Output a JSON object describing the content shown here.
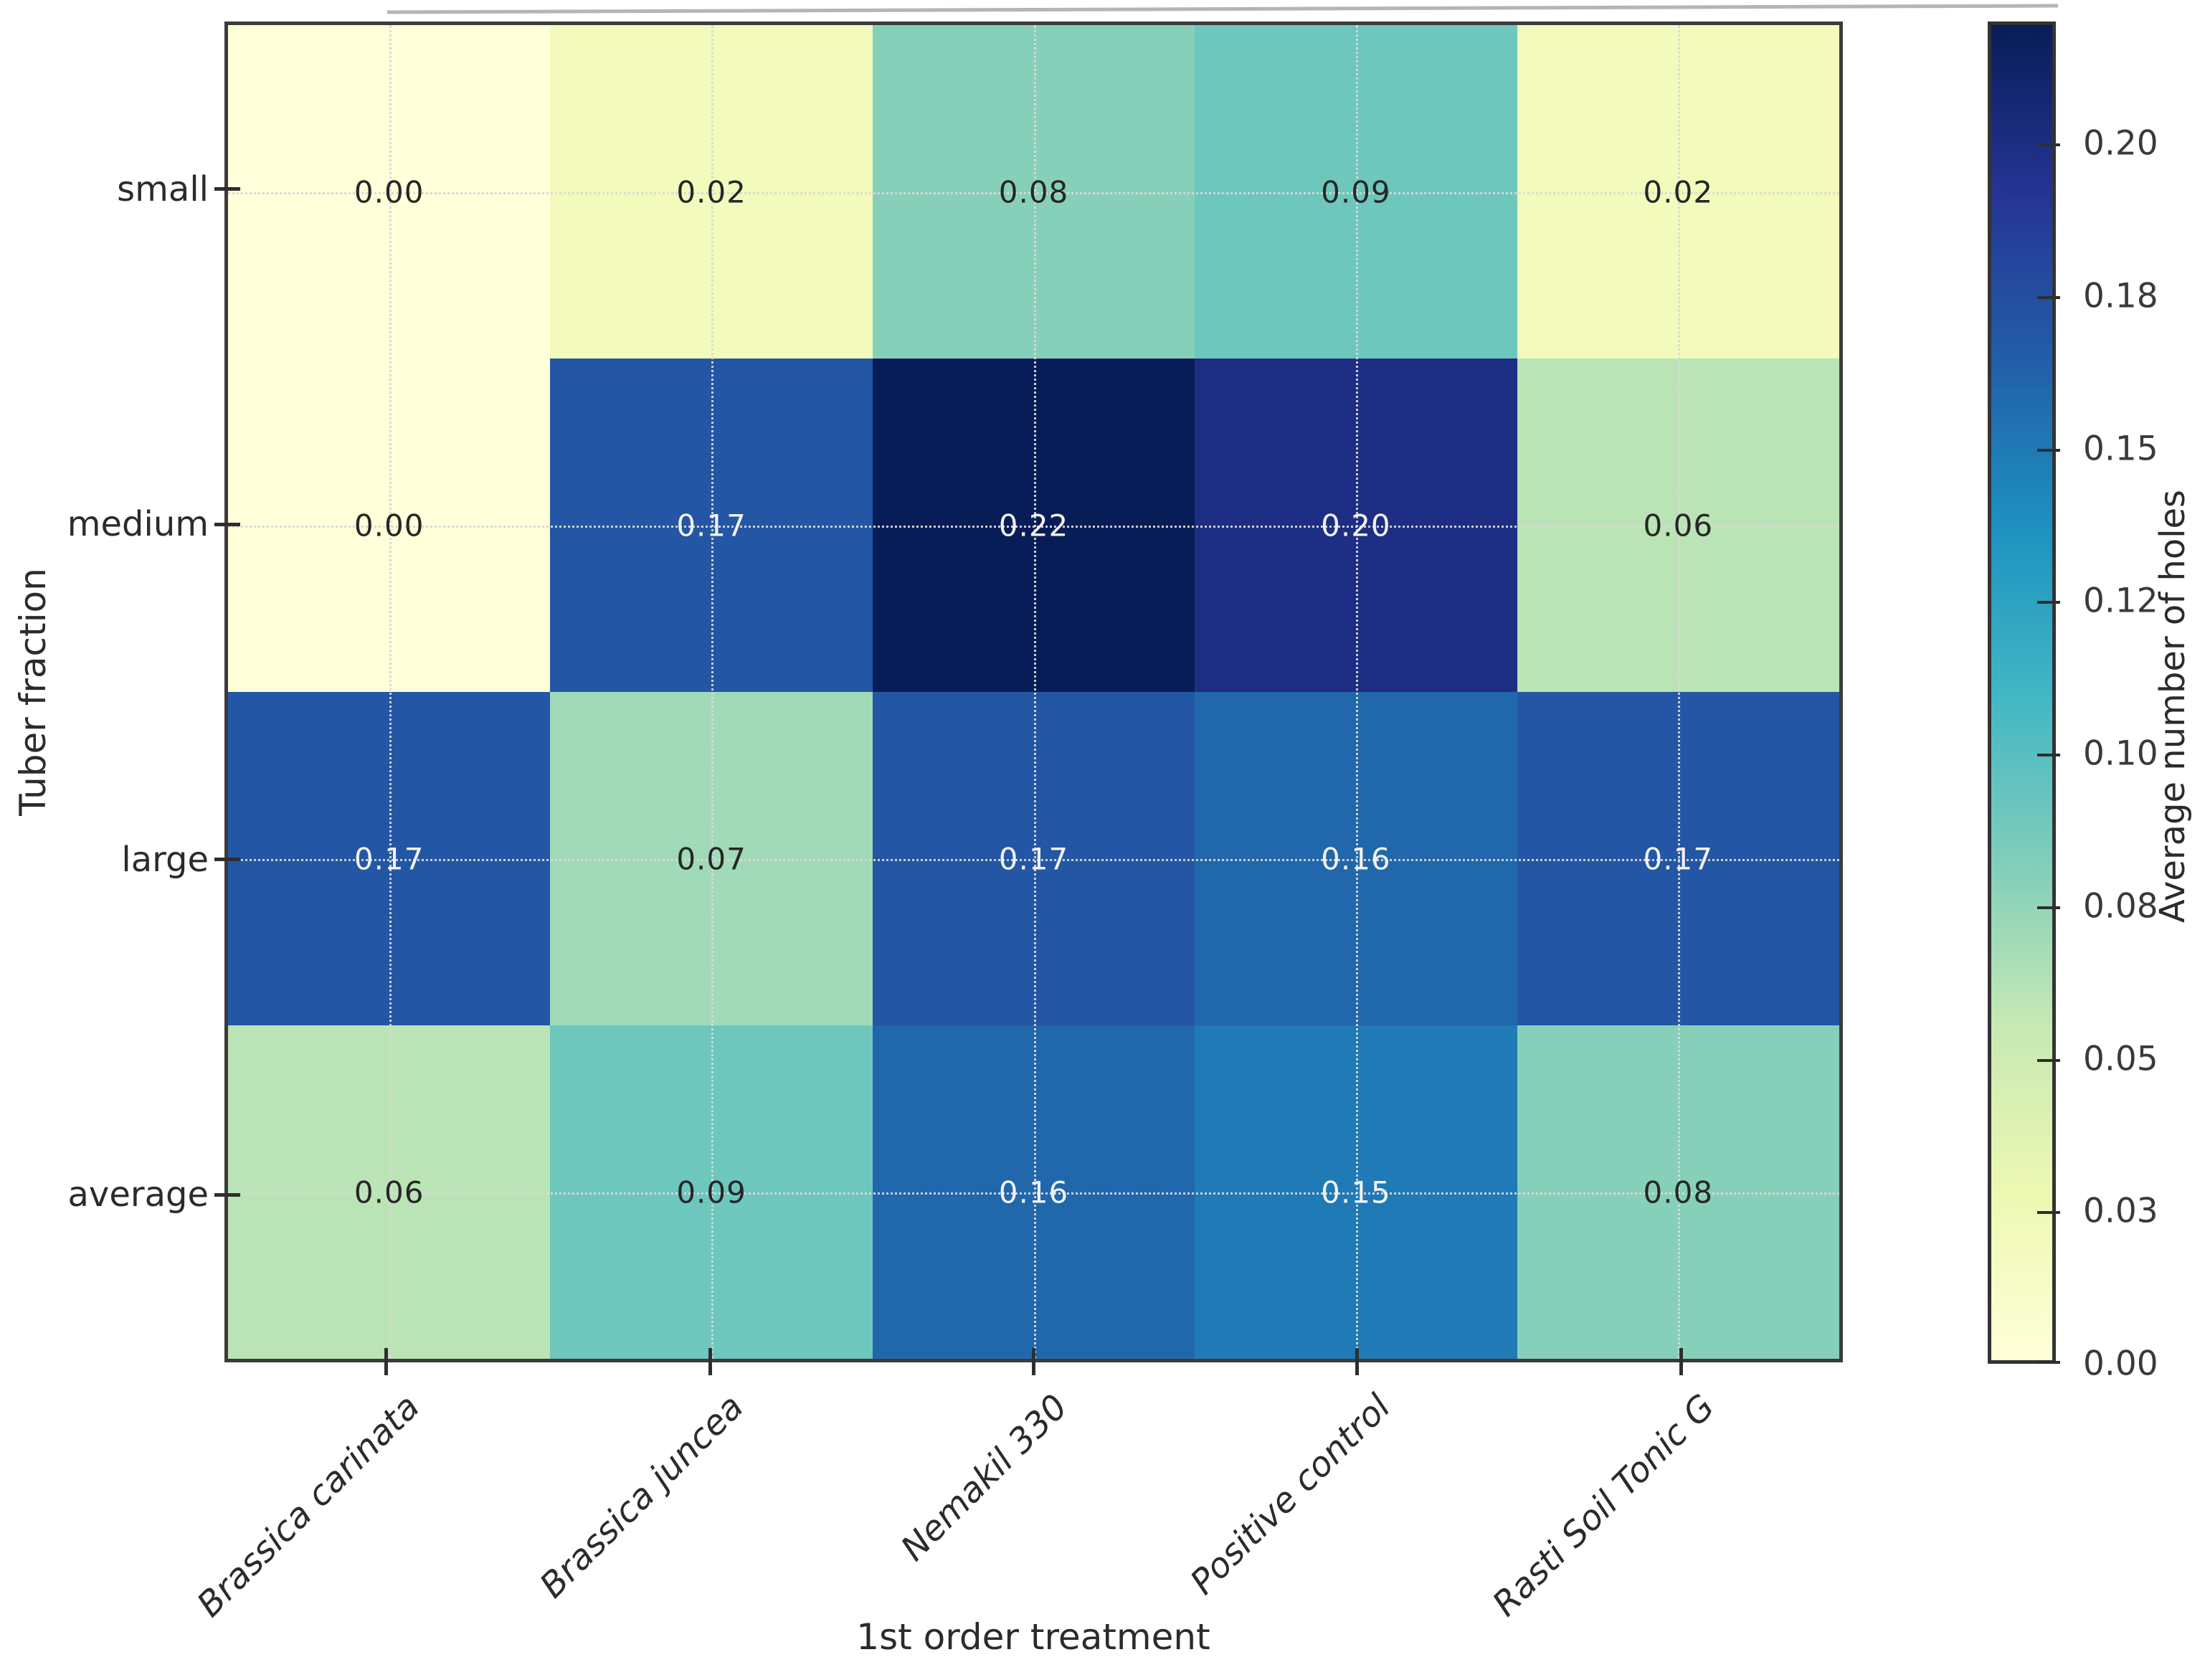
{
  "figure": {
    "background": "#ffffff",
    "plot_border_color": "#3b3b3b",
    "tick_color": "#2e2e2e",
    "axis_text_color": "#2b2b2b"
  },
  "chart_data": {
    "type": "heatmap",
    "title": "",
    "xlabel": "1st order treatment",
    "ylabel": "Tuber fraction",
    "rows": [
      "small",
      "medium",
      "large",
      "average"
    ],
    "columns": [
      "Brassica carinata",
      "Brassica juncea",
      "Nemakil 330",
      "Positive control",
      "Rasti Soil Tonic G"
    ],
    "values": [
      [
        0.0,
        0.02,
        0.08,
        0.09,
        0.02
      ],
      [
        0.0,
        0.17,
        0.22,
        0.2,
        0.06
      ],
      [
        0.17,
        0.07,
        0.17,
        0.16,
        0.17
      ],
      [
        0.06,
        0.09,
        0.16,
        0.15,
        0.08
      ]
    ],
    "value_decimals": 2,
    "vmin": 0,
    "vmax": 0.22,
    "grid": {
      "style": "dotted",
      "color": "rgba(216,216,216,0.95)",
      "on": true
    },
    "colormap": {
      "name": "YlGnBu",
      "stops": [
        [
          0.0,
          "#ffffd9"
        ],
        [
          0.125,
          "#edf8b1"
        ],
        [
          0.25,
          "#c7e9b4"
        ],
        [
          0.375,
          "#7fcdbb"
        ],
        [
          0.5,
          "#41b6c4"
        ],
        [
          0.625,
          "#1d91c0"
        ],
        [
          0.75,
          "#225ea8"
        ],
        [
          0.875,
          "#253494"
        ],
        [
          1.0,
          "#081d58"
        ]
      ]
    },
    "cell_text_colors": {
      "light_bg_text": "#262626",
      "dark_bg_text": "#f2f2f2",
      "dark_text_threshold": 0.58
    },
    "colorbar": {
      "label": "Average number of holes",
      "ticks": [
        {
          "value": 0.0,
          "label": "0.00"
        },
        {
          "value": 0.025,
          "label": "0.03"
        },
        {
          "value": 0.05,
          "label": "0.05"
        },
        {
          "value": 0.075,
          "label": "0.08"
        },
        {
          "value": 0.1,
          "label": "0.10"
        },
        {
          "value": 0.125,
          "label": "0.12"
        },
        {
          "value": 0.15,
          "label": "0.15"
        },
        {
          "value": 0.175,
          "label": "0.18"
        },
        {
          "value": 0.2,
          "label": "0.20"
        }
      ]
    }
  }
}
